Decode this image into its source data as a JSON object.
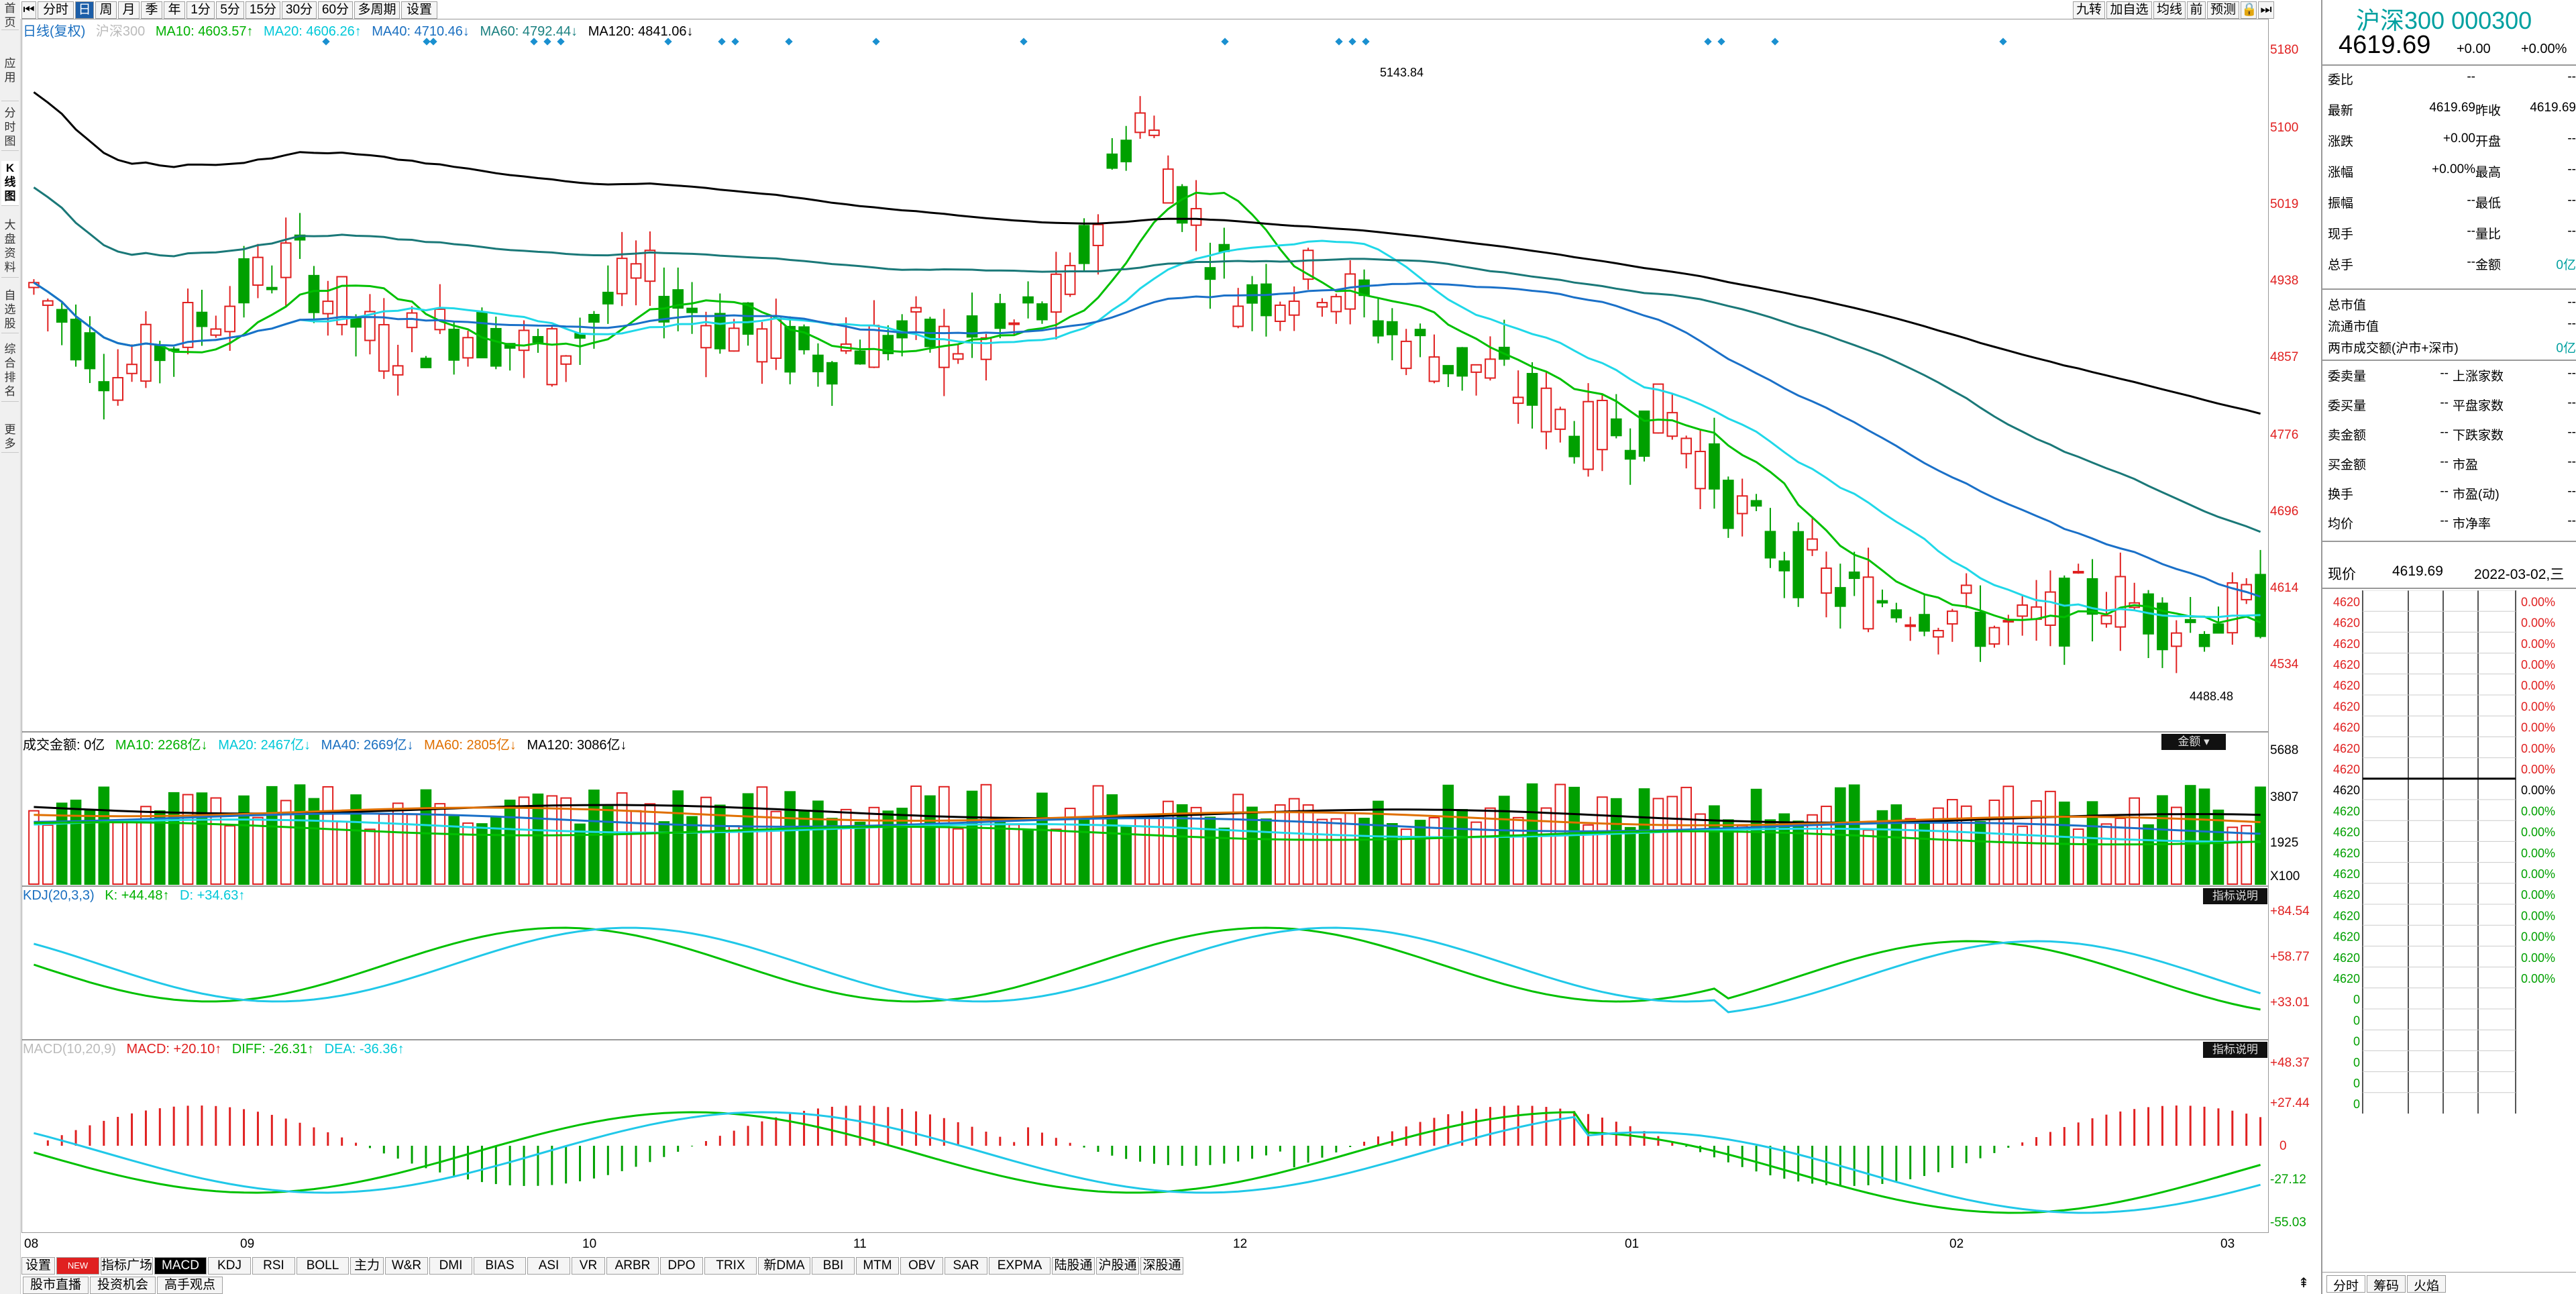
{
  "left_nav": [
    "首页",
    "应用",
    "分时图",
    "K线图",
    "大盘资料",
    "自选股",
    "综合排名",
    "更多"
  ],
  "toolbar": {
    "periods": [
      "分时",
      "日",
      "周",
      "月",
      "季",
      "年",
      "1分",
      "5分",
      "15分",
      "30分",
      "60分",
      "多周期",
      "设置"
    ],
    "active_period": "日",
    "right_buttons": [
      "九转",
      "加自选",
      "均线",
      "前",
      "预测"
    ]
  },
  "main_legend": {
    "name": "日线(复权)",
    "index_name": "沪深300",
    "ma10": "MA10: 4603.57↑",
    "ma20": "MA20: 4606.26↑",
    "ma40": "MA40: 4710.46↓",
    "ma60": "MA60: 4792.44↓",
    "ma120": "MA120: 4841.06↓"
  },
  "price_axis": [
    "5180",
    "5100",
    "5019",
    "4938",
    "4857",
    "4776",
    "4696",
    "4614",
    "4534"
  ],
  "high_label": "5143.84",
  "low_label": "4488.48",
  "volume_legend": {
    "name": "成交金额: 0亿",
    "ma10": "MA10: 2268亿↓",
    "ma20": "MA20: 2467亿↓",
    "ma40": "MA40: 2669亿↓",
    "ma60": "MA60: 2805亿↓",
    "ma120": "MA120: 3086亿↓",
    "box_label": "金额"
  },
  "volume_axis": [
    "5688",
    "3807",
    "1925",
    "X100"
  ],
  "kdj_legend": {
    "name": "KDJ(20,3,3)",
    "k": "K: +44.48↑",
    "d": "D: +34.63↑",
    "box_label": "指标说明"
  },
  "kdj_axis": [
    "+84.54",
    "+58.77",
    "+33.01"
  ],
  "macd_legend": {
    "name": "MACD(10,20,9)",
    "macd": "MACD: +20.10↑",
    "diff": "DIFF: -26.31↑",
    "dea": "DEA: -36.36↑",
    "box_label": "指标说明"
  },
  "macd_axis": [
    "+48.37",
    "+27.44",
    "0",
    "-27.12",
    "-55.03"
  ],
  "date_axis": [
    "08",
    "09",
    "10",
    "11",
    "12",
    "01",
    "02",
    "03"
  ],
  "indicator_tabs": [
    "设置",
    "NEW",
    "指标广场",
    "MACD",
    "KDJ",
    "RSI",
    "BOLL",
    "主力",
    "W&R",
    "DMI",
    "BIAS",
    "ASI",
    "VR",
    "ARBR",
    "DPO",
    "TRIX",
    "新DMA",
    "BBI",
    "MTM",
    "OBV",
    "SAR",
    "EXPMA",
    "陆股通",
    "沪股通",
    "深股通"
  ],
  "active_indicator": "MACD",
  "info_tabs": [
    "股市直播",
    "投资机会",
    "高手观点"
  ],
  "quote": {
    "title": "沪深300 000300",
    "price": "4619.69",
    "change": "+0.00",
    "change_pct": "+0.00%",
    "rows": [
      {
        "l": "委比",
        "v": "--",
        "l2": "",
        "v2": "--"
      },
      {
        "l": "最新",
        "v": "4619.69",
        "l2": "昨收",
        "v2": "4619.69"
      },
      {
        "l": "涨跌",
        "v": "+0.00",
        "l2": "开盘",
        "v2": "--"
      },
      {
        "l": "涨幅",
        "v": "+0.00%",
        "l2": "最高",
        "v2": "--"
      },
      {
        "l": "振幅",
        "v": "--",
        "l2": "最低",
        "v2": "--"
      },
      {
        "l": "现手",
        "v": "--",
        "l2": "量比",
        "v2": "--"
      },
      {
        "l": "总手",
        "v": "--",
        "l2": "金额",
        "v2": "0亿"
      }
    ],
    "market_rows": [
      {
        "l": "总市值",
        "v": "--"
      },
      {
        "l": "流通市值",
        "v": "--"
      },
      {
        "l": "两市成交额(沪市+深市)",
        "v": "0亿"
      }
    ],
    "breadth_rows": [
      {
        "l": "委卖量",
        "v": "--",
        "l2": "上涨家数",
        "v2": "--"
      },
      {
        "l": "委买量",
        "v": "--",
        "l2": "平盘家数",
        "v2": "--"
      },
      {
        "l": "卖金额",
        "v": "--",
        "l2": "下跌家数",
        "v2": "--"
      },
      {
        "l": "买金额",
        "v": "--",
        "l2": "市盈",
        "v2": "--"
      },
      {
        "l": "换手",
        "v": "--",
        "l2": "市盈(动)",
        "v2": "--"
      },
      {
        "l": "均价",
        "v": "--",
        "l2": "市净率",
        "v2": "--"
      }
    ],
    "now_label": "现价",
    "now_price": "4619.69",
    "now_date": "2022-03-02,三",
    "tick_prices": [
      "4620",
      "4620",
      "4620",
      "4620",
      "4620",
      "4620",
      "4620",
      "4620",
      "4620",
      "4620",
      "4620",
      "4620",
      "4620",
      "4620",
      "4620",
      "4620",
      "4620",
      "4620",
      "4620",
      "0",
      "0",
      "0",
      "0",
      "0",
      "0"
    ],
    "tick_pcts": [
      "0.00%",
      "0.00%",
      "0.00%",
      "0.00%",
      "0.00%",
      "0.00%",
      "0.00%",
      "0.00%",
      "0.00%",
      "0.00%",
      "0.00%",
      "0.00%",
      "0.00%",
      "0.00%",
      "0.00%",
      "0.00%",
      "0.00%",
      "0.00%",
      "0.00%"
    ],
    "bottom_tabs": [
      "分时",
      "筹码",
      "火焰"
    ]
  },
  "chart_data": {
    "type": "candlestick",
    "series_count": 160,
    "up_color": "#e02020",
    "down_color": "#00a000",
    "price_range": [
      4490,
      5180
    ],
    "month_ticks": [
      "08",
      "09",
      "10",
      "11",
      "12",
      "01",
      "02",
      "03"
    ]
  }
}
